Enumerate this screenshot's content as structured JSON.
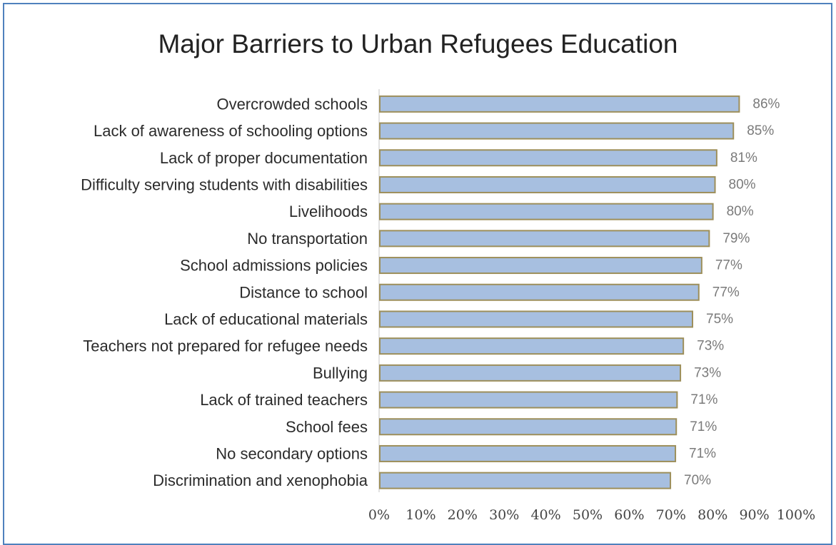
{
  "chart_data": {
    "type": "bar",
    "orientation": "horizontal",
    "title": "Major Barriers to Urban Refugees Education",
    "xlabel": "",
    "ylabel": "",
    "categories": [
      "Overcrowded schools",
      "Lack of awareness of schooling options",
      "Lack of proper documentation",
      "Difficulty serving students with disabilities",
      "Livelihoods",
      "No transportation",
      "School admissions policies",
      "Distance to school",
      "Lack of educational materials",
      "Teachers not prepared for refugee needs",
      "Bullying",
      "Lack of trained teachers",
      "School fees",
      "No secondary options",
      "Discrimination and xenophobia"
    ],
    "values": [
      86,
      85,
      81,
      80,
      80,
      79,
      77,
      77,
      75,
      73,
      73,
      71,
      71,
      71,
      70
    ],
    "value_labels": [
      "86%",
      "85%",
      "81%",
      "80%",
      "80%",
      "79%",
      "77%",
      "77%",
      "75%",
      "73%",
      "73%",
      "71%",
      "71%",
      "71%",
      "70%"
    ],
    "value_bar_fraction": [
      0.862,
      0.848,
      0.808,
      0.804,
      0.799,
      0.79,
      0.772,
      0.765,
      0.75,
      0.728,
      0.721,
      0.713,
      0.711,
      0.709,
      0.697
    ],
    "xlim": [
      0,
      100
    ],
    "x_ticks": [
      "0%",
      "10%",
      "20%",
      "30%",
      "40%",
      "50%",
      "60%",
      "70%",
      "80%",
      "90%",
      "100%"
    ],
    "grid": false,
    "legend": "none",
    "colors": {
      "bar_fill": "#a7bfe0",
      "bar_stroke": "#9d8f5b",
      "axis": "#d9d9d9",
      "frame": "#4f81bd"
    }
  }
}
